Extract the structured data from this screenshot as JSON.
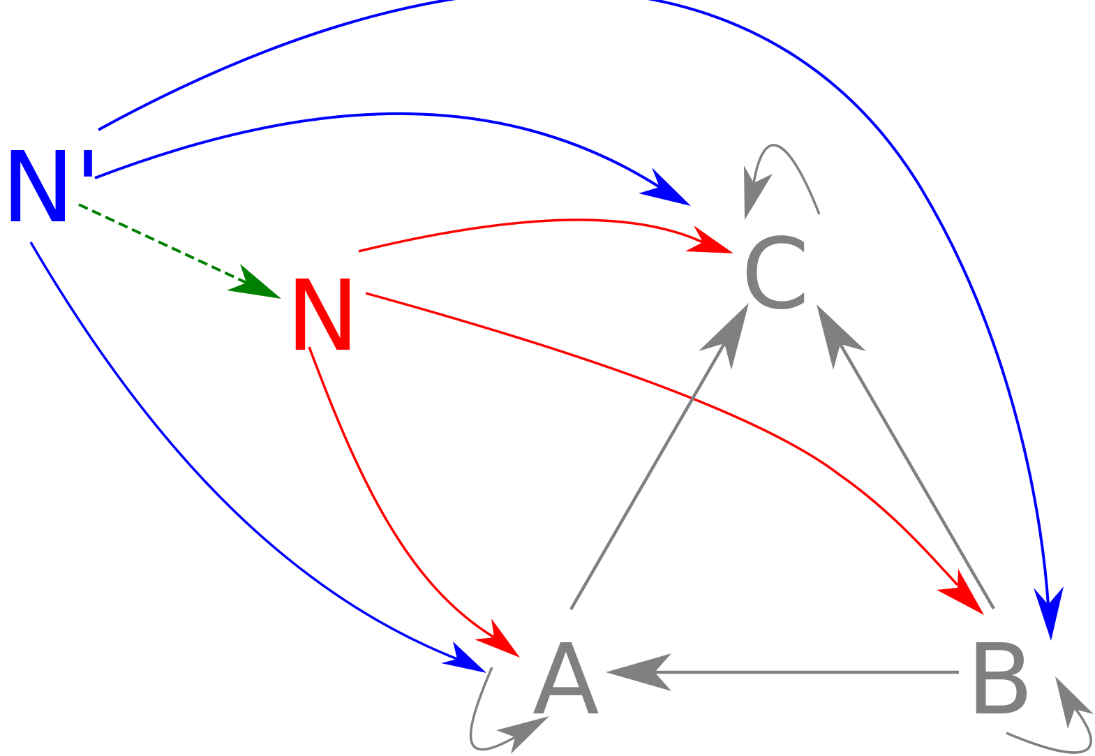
{
  "nodes": {
    "n_prime": {
      "label": "N'",
      "color": "#0000ff"
    },
    "n": {
      "label": "N",
      "color": "#ff0000"
    },
    "a": {
      "label": "A",
      "color": "#808080"
    },
    "b": {
      "label": "B",
      "color": "#808080"
    },
    "c": {
      "label": "C",
      "color": "#808080"
    }
  },
  "colors": {
    "blue": "#0000ff",
    "red": "#ff0000",
    "gray": "#808080",
    "green": "#008000"
  },
  "edges": [
    {
      "from": "N'",
      "to": "C",
      "color": "blue",
      "style": "solid"
    },
    {
      "from": "N'",
      "to": "B",
      "color": "blue",
      "style": "solid"
    },
    {
      "from": "N'",
      "to": "A",
      "color": "blue",
      "style": "solid"
    },
    {
      "from": "N'",
      "to": "N",
      "color": "green",
      "style": "dashed"
    },
    {
      "from": "N",
      "to": "C",
      "color": "red",
      "style": "solid"
    },
    {
      "from": "N",
      "to": "B",
      "color": "red",
      "style": "solid"
    },
    {
      "from": "N",
      "to": "A",
      "color": "red",
      "style": "solid"
    },
    {
      "from": "A",
      "to": "C",
      "color": "gray",
      "style": "solid"
    },
    {
      "from": "B",
      "to": "C",
      "color": "gray",
      "style": "solid"
    },
    {
      "from": "B",
      "to": "A",
      "color": "gray",
      "style": "solid"
    },
    {
      "from": "A",
      "to": "A",
      "color": "gray",
      "style": "self-loop"
    },
    {
      "from": "B",
      "to": "B",
      "color": "gray",
      "style": "self-loop"
    },
    {
      "from": "C",
      "to": "C",
      "color": "gray",
      "style": "self-loop"
    }
  ]
}
